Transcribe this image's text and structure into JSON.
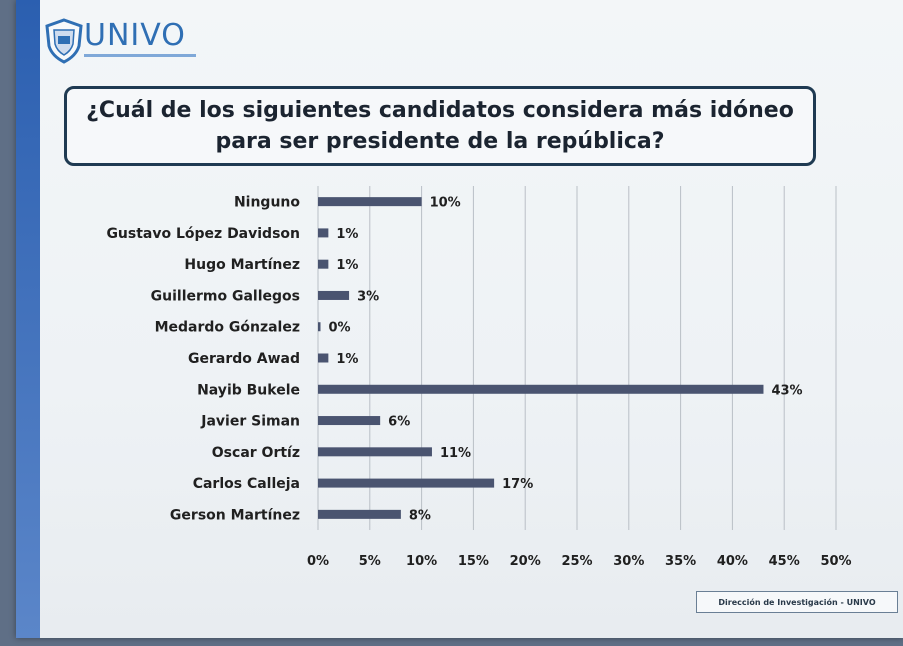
{
  "header": {
    "logo_text": "UNIVO"
  },
  "question": "¿Cuál de los siguientes candidatos considera más idóneo para ser presidente de la república?",
  "footer": "Dirección de Investigación - UNIVO",
  "colors": {
    "bar": "#4a5470",
    "grid": "#b9bfc6",
    "accent": "#2f6fb4"
  },
  "chart_data": {
    "type": "bar",
    "orientation": "horizontal",
    "title": "¿Cuál de los siguientes candidatos considera más idóneo para ser presidente de la república?",
    "categories": [
      "Ninguno",
      "Gustavo López Davidson",
      "Hugo Martínez",
      "Guillermo Gallegos",
      "Medardo Gónzalez",
      "Gerardo Awad",
      "Nayib Bukele",
      "Javier Siman",
      "Oscar Ortíz",
      "Carlos Calleja",
      "Gerson Martínez"
    ],
    "values": [
      10,
      1,
      1,
      3,
      0,
      1,
      43,
      6,
      11,
      17,
      8
    ],
    "value_labels": [
      "10%",
      "1%",
      "1%",
      "3%",
      "0%",
      "1%",
      "43%",
      "6%",
      "11%",
      "17%",
      "8%"
    ],
    "xlim": [
      0,
      50
    ],
    "ticks": [
      0,
      5,
      10,
      15,
      20,
      25,
      30,
      35,
      40,
      45,
      50
    ],
    "tick_labels": [
      "0%",
      "5%",
      "10%",
      "15%",
      "20%",
      "25%",
      "30%",
      "35%",
      "40%",
      "45%",
      "50%"
    ],
    "xlabel": "",
    "ylabel": "",
    "grid": true,
    "legend": "none"
  }
}
